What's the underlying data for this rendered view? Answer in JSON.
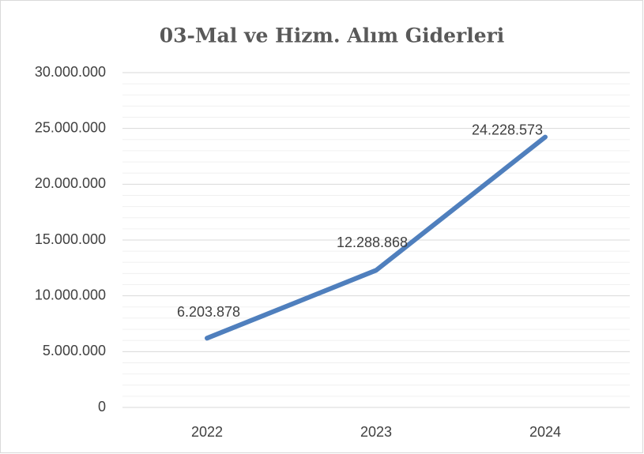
{
  "chart_data": {
    "type": "line",
    "title": "03-Mal ve Hizm. Alım Giderleri",
    "categories": [
      "2022",
      "2023",
      "2024"
    ],
    "series": [
      {
        "name": "03-Mal ve Hizm. Alım Giderleri",
        "color": "#4f7fbd",
        "values": [
          6203878,
          12288868,
          24228573
        ],
        "value_labels": [
          "6.203.878",
          "12.288.868",
          "24.228.573"
        ]
      }
    ],
    "ylim": [
      0,
      30000000
    ],
    "yticks": [
      0,
      {
        "value": 5000000,
        "label": "5.000.000"
      },
      {
        "value": 10000000,
        "label": "10.000.000"
      },
      {
        "value": 15000000,
        "label": "15.000.000"
      },
      {
        "value": 20000000,
        "label": "20.000.000"
      },
      {
        "value": 25000000,
        "label": "25.000.000"
      },
      {
        "value": 30000000,
        "label": "30.000.000"
      }
    ],
    "yminorticks": [
      1000000,
      2000000,
      3000000,
      4000000,
      6000000,
      7000000,
      8000000,
      9000000,
      11000000,
      12000000,
      13000000,
      14000000,
      16000000,
      17000000,
      18000000,
      19000000,
      21000000,
      22000000,
      23000000,
      24000000,
      26000000,
      27000000,
      28000000,
      29000000
    ],
    "grid": true
  }
}
